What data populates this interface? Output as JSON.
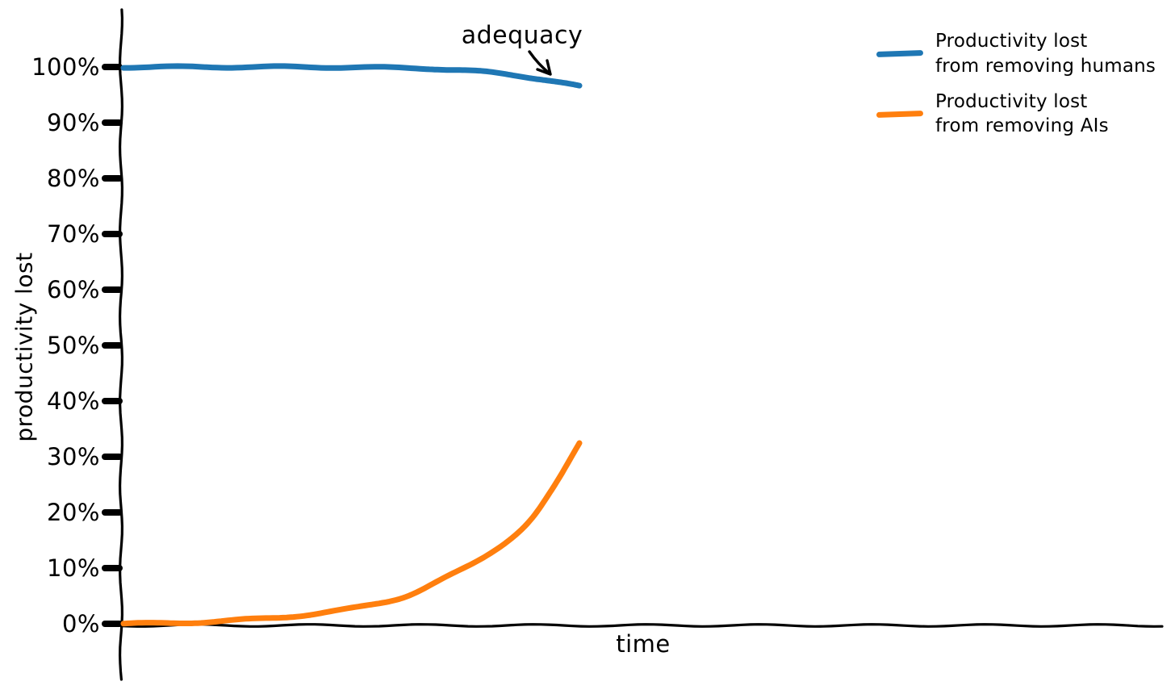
{
  "figure": {
    "ylabel": "productivity lost",
    "xlabel": "time",
    "annotation": "adequacy"
  },
  "legend": [
    {
      "line1": "Productivity lost",
      "line2": "from removing humans",
      "color": "#1f77b4"
    },
    {
      "line1": "Productivity lost",
      "line2": "from removing AIs",
      "color": "#ff7f0e"
    }
  ],
  "chart_data": {
    "type": "line",
    "style": "xkcd-hand-drawn",
    "title": "",
    "xlabel": "time",
    "ylabel": "productivity lost",
    "grid": false,
    "legend_position": "top-right",
    "x_axis": {
      "label": "time",
      "range": [
        0,
        1
      ],
      "ticks": [],
      "note": "unlabeled time axis; curves span roughly the left 44% of the axis"
    },
    "y_axis": {
      "label": "productivity lost",
      "unit": "%",
      "range": [
        0,
        100
      ],
      "ticks": [
        100,
        90,
        80,
        70,
        60,
        50,
        40,
        30,
        20,
        10,
        0
      ],
      "tick_labels": [
        "100%",
        "90%",
        "80%",
        "70%",
        "60%",
        "50%",
        "40%",
        "30%",
        "20%",
        "10%",
        "0%"
      ]
    },
    "series": [
      {
        "name": "Productivity lost from removing humans",
        "color": "#1f77b4",
        "points": [
          [
            0,
            100
          ],
          [
            0.13,
            100
          ],
          [
            0.26,
            100
          ],
          [
            0.4,
            100
          ],
          [
            0.53,
            99.9
          ],
          [
            0.65,
            99.8
          ],
          [
            0.72,
            99.5
          ],
          [
            0.79,
            99.1
          ],
          [
            0.86,
            98.5
          ],
          [
            0.92,
            97.8
          ],
          [
            0.96,
            97.2
          ],
          [
            1,
            96.5
          ]
        ]
      },
      {
        "name": "Productivity lost from removing AIs",
        "color": "#ff7f0e",
        "points": [
          [
            0,
            0
          ],
          [
            0.09,
            0.1
          ],
          [
            0.17,
            0.3
          ],
          [
            0.26,
            0.7
          ],
          [
            0.35,
            1.2
          ],
          [
            0.44,
            2
          ],
          [
            0.53,
            3.2
          ],
          [
            0.62,
            5
          ],
          [
            0.7,
            8
          ],
          [
            0.79,
            12
          ],
          [
            0.88,
            17.5
          ],
          [
            0.94,
            24
          ],
          [
            1,
            32.5
          ]
        ]
      }
    ],
    "annotations": [
      {
        "text": "adequacy",
        "arrow": "short hand-drawn arrow pointing down-right",
        "points_to": {
          "series": "Productivity lost from removing humans",
          "x": 0.94,
          "y": 98
        }
      }
    ]
  }
}
